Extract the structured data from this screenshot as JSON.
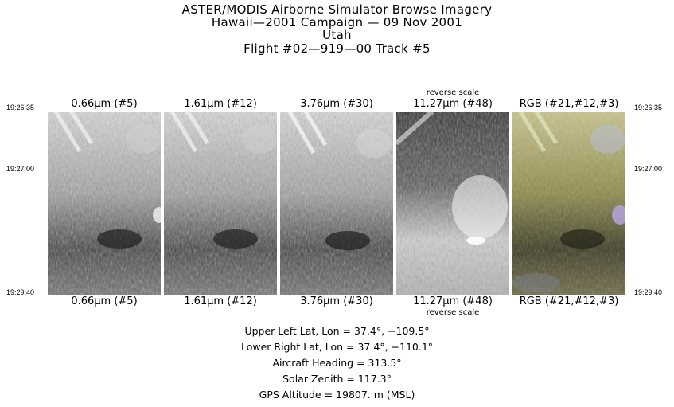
{
  "title": {
    "line1": "ASTER/MODIS Airborne Simulator Browse Imagery",
    "line2": "Hawaii—2001 Campaign — 09 Nov 2001",
    "line3": "Utah",
    "line4": "Flight #02—919—00 Track #5"
  },
  "times": {
    "top": "19:26:35",
    "middle": "19:27:00",
    "bottom": "19:29:40"
  },
  "panels": [
    {
      "label": "0.66μm (#5)",
      "note": ""
    },
    {
      "label": "1.61μm (#12)",
      "note": ""
    },
    {
      "label": "3.76μm (#30)",
      "note": ""
    },
    {
      "label": "11.27μm (#48)",
      "note": "reverse scale"
    },
    {
      "label": "RGB (#21,#12,#3)",
      "note": ""
    }
  ],
  "info": {
    "upper_left": "Upper Left Lat, Lon =   37.4°, −109.5°",
    "lower_right": "Lower Right Lat, Lon =   37.4°, −110.1°",
    "heading": "Aircraft Heading =  313.5°",
    "zenith": "Solar Zenith =  117.3°",
    "altitude": "GPS Altitude =  19807. m (MSL)"
  }
}
